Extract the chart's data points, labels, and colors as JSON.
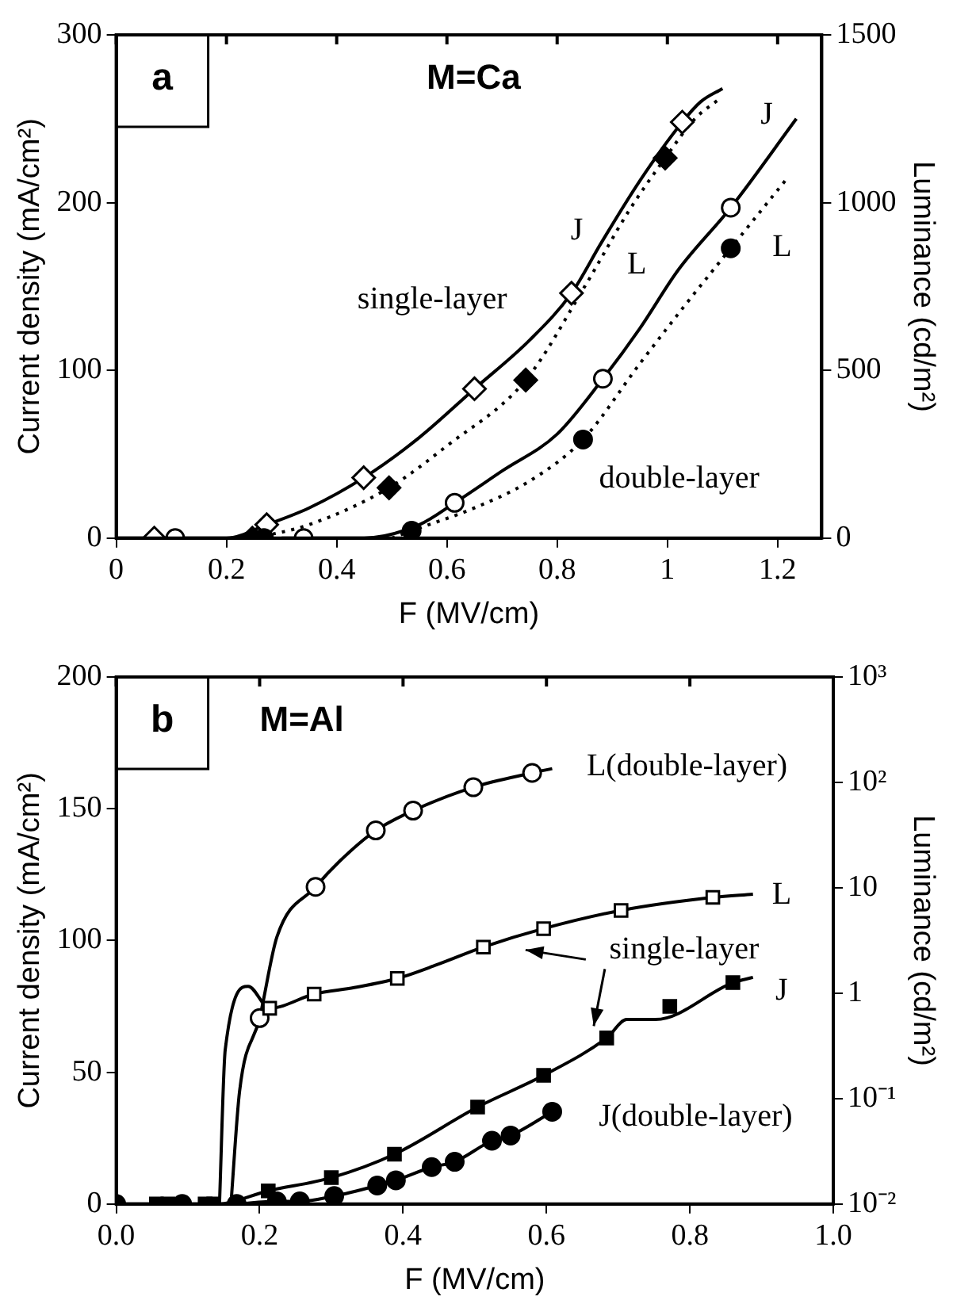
{
  "chart_data": [
    {
      "type": "line",
      "title": "a",
      "subtitle": "M=Ca",
      "xlabel": "F (MV/cm)",
      "ylabel": "Current density (mA/cm²)",
      "y2label": "Luminance (cd/m²)",
      "xlim": [
        0,
        1.28
      ],
      "xticks": [
        0,
        0.2,
        0.4,
        0.6,
        0.8,
        1,
        1.2
      ],
      "ylim": [
        0,
        300
      ],
      "yticks": [
        0,
        100,
        200,
        300
      ],
      "y2lim": [
        0,
        1500
      ],
      "y2ticks": [
        0,
        500,
        1000,
        1500
      ],
      "grid": false,
      "legend": false,
      "series": [
        {
          "color": "#000000",
          "line_style": "solid",
          "marker": "none",
          "x": [
            0,
            0.2,
            0.273,
            0.35,
            0.449,
            0.55,
            0.65,
            0.75,
            0.826,
            0.88,
            0.95,
            1.027,
            1.06,
            1.1
          ],
          "values": [
            0,
            0,
            8,
            18,
            36,
            60,
            89,
            118,
            146,
            176,
            213,
            248,
            260,
            268
          ]
        },
        {
          "color": "#000000",
          "line_style": "dotted",
          "marker": "none",
          "axis": "y2",
          "x": [
            0.25,
            0.35,
            0.495,
            0.6,
            0.743,
            0.85,
            0.93,
            0.996,
            1.05,
            1.095
          ],
          "values": [
            0,
            40,
            150,
            275,
            471,
            750,
            975,
            1133,
            1250,
            1310
          ]
        },
        {
          "color": "#000000",
          "line_style": "solid",
          "marker": "none",
          "x": [
            0.3,
            0.45,
            0.55,
            0.614,
            0.7,
            0.8,
            0.883,
            0.95,
            1.02,
            1.115,
            1.234
          ],
          "values": [
            0,
            0,
            8,
            21,
            40,
            62,
            95,
            125,
            160,
            197,
            250
          ]
        },
        {
          "color": "#000000",
          "line_style": "dotted",
          "marker": "none",
          "axis": "y2",
          "x": [
            0.5,
            0.536,
            0.65,
            0.75,
            0.847,
            0.95,
            1.03,
            1.115,
            1.219
          ],
          "values": [
            0,
            22,
            90,
            170,
            294,
            520,
            690,
            864,
            1076
          ]
        },
        {
          "type": "scatter",
          "color": "#ffffff",
          "marker": "diamond",
          "x": [
            0.069,
            0.273,
            0.449,
            0.65,
            0.826,
            1.027
          ],
          "values": [
            0,
            8,
            36,
            89,
            146,
            248
          ]
        },
        {
          "type": "scatter",
          "color": "#000000",
          "marker": "diamond",
          "axis": "y2",
          "x": [
            0.247,
            0.495,
            0.743,
            0.996
          ],
          "values": [
            0,
            150,
            471,
            1133
          ]
        },
        {
          "type": "scatter",
          "color": "#ffffff",
          "marker": "circle",
          "x": [
            0.107,
            0.34,
            0.614,
            0.883,
            1.115
          ],
          "values": [
            0,
            0,
            21,
            95,
            197
          ]
        },
        {
          "type": "scatter",
          "color": "#000000",
          "marker": "circle",
          "axis": "y2",
          "x": [
            0.268,
            0.536,
            0.847,
            1.115
          ],
          "values": [
            0,
            22,
            294,
            864
          ]
        }
      ],
      "annotations": [
        "single-layer",
        "J",
        "L",
        "J",
        "L",
        "double-layer"
      ]
    },
    {
      "type": "line",
      "title": "b",
      "subtitle": "M=Al",
      "xlabel": "F (MV/cm)",
      "ylabel": "Current density (mA/cm²)",
      "y2label": "Luminance (cd/m²)",
      "log": "y2",
      "xlim": [
        0,
        1
      ],
      "xticks": [
        {
          "value": 0,
          "label": "0.0"
        },
        0.2,
        0.4,
        0.6,
        0.8,
        {
          "value": 1,
          "label": "1.0"
        }
      ],
      "ylim": [
        0,
        200
      ],
      "yticks": [
        0,
        50,
        100,
        150,
        200
      ],
      "y2lim": [
        0.01,
        1000
      ],
      "y2ticks": [
        {
          "value": 0.01,
          "label": "10⁻²"
        },
        {
          "value": 0.1,
          "label": "10⁻¹"
        },
        1,
        10,
        {
          "value": 100,
          "label": "10²"
        },
        {
          "value": 1000,
          "label": "10³"
        }
      ],
      "grid": false,
      "legend": false,
      "series": [
        {
          "color": "#000000",
          "line_style": "solid",
          "marker": "none",
          "axis": "y2",
          "x": [
            0.16,
            0.172,
            0.2,
            0.224,
            0.278,
            0.312,
            0.362,
            0.414,
            0.498,
            0.58,
            0.608
          ],
          "values": [
            0.01,
            0.117,
            0.58,
            3.4,
            10.2,
            18,
            35,
            54,
            90,
            123,
            135
          ]
        },
        {
          "color": "#000000",
          "line_style": "solid",
          "marker": "none",
          "axis": "y2",
          "x": [
            0.144,
            0.152,
            0.184,
            0.214,
            0.276,
            0.332,
            0.392,
            0.448,
            0.512,
            0.596,
            0.704,
            0.832,
            0.888
          ],
          "values": [
            0.01,
            0.29,
            1.16,
            0.72,
            0.98,
            1.13,
            1.38,
            1.87,
            2.74,
            4.1,
            6.1,
            8.1,
            8.7
          ]
        },
        {
          "color": "#000000",
          "line_style": "solid",
          "marker": "none",
          "x": [
            0,
            0.14,
            0.212,
            0.3,
            0.388,
            0.504,
            0.596,
            0.684,
            0.712,
            0.752,
            0.86,
            0.888
          ],
          "values": [
            0,
            0,
            5,
            10,
            18.9,
            36.8,
            48.8,
            63,
            70,
            70,
            84,
            86
          ]
        },
        {
          "color": "#000000",
          "line_style": "solid",
          "marker": "none",
          "x": [
            0.168,
            0.224,
            0.256,
            0.304,
            0.364,
            0.39,
            0.44,
            0.472,
            0.524,
            0.55,
            0.608
          ],
          "values": [
            0,
            1,
            1,
            3,
            7,
            9,
            14,
            16,
            24,
            26,
            35
          ]
        },
        {
          "type": "scatter",
          "color": "#ffffff",
          "marker": "circle",
          "axis": "y2",
          "x": [
            0.2,
            0.278,
            0.362,
            0.414,
            0.498,
            0.58
          ],
          "values": [
            0.58,
            10.2,
            35,
            54,
            90,
            123
          ]
        },
        {
          "type": "scatter",
          "color": "#ffffff",
          "marker": "square",
          "axis": "y2",
          "x": [
            0.214,
            0.276,
            0.392,
            0.512,
            0.596,
            0.704,
            0.832
          ],
          "values": [
            0.72,
            0.98,
            1.38,
            2.74,
            4.1,
            6.1,
            8.1
          ]
        },
        {
          "type": "scatter",
          "color": "#000000",
          "marker": "square",
          "x": [
            0.056,
            0.072,
            0.124,
            0.136,
            0.212,
            0.3,
            0.388,
            0.504,
            0.596,
            0.684,
            0.772,
            0.86
          ],
          "values": [
            0,
            0,
            0,
            0,
            5,
            10,
            18.9,
            36.8,
            48.8,
            63,
            75,
            84
          ]
        },
        {
          "type": "scatter",
          "color": "#000000",
          "marker": "circle",
          "x": [
            0,
            0.092,
            0.168,
            0.224,
            0.256,
            0.304,
            0.364,
            0.39,
            0.44,
            0.472,
            0.524,
            0.55,
            0.608
          ],
          "values": [
            0,
            0,
            0,
            1,
            1,
            3,
            7,
            9,
            14,
            16,
            24,
            26,
            35
          ]
        }
      ],
      "annotations": [
        "L(double-layer)",
        "L",
        "single-layer",
        "J",
        "J(double-layer)"
      ]
    }
  ]
}
